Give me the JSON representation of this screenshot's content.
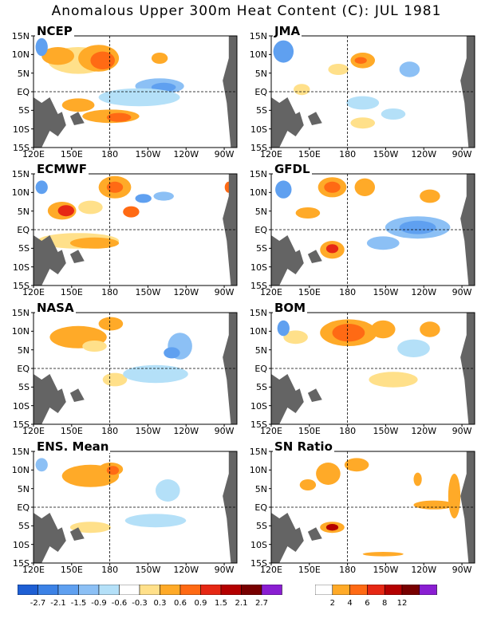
{
  "title": "Anomalous Upper 300m Heat Content (C): JUL 1981",
  "lat_labels": [
    "15N",
    "10N",
    "5N",
    "EQ",
    "5S",
    "10S",
    "15S"
  ],
  "lon_labels": [
    "120E",
    "150E",
    "180",
    "150W",
    "120W",
    "90W"
  ],
  "panels": [
    {
      "name": "NCEP"
    },
    {
      "name": "JMA"
    },
    {
      "name": "ECMWF"
    },
    {
      "name": "GFDL"
    },
    {
      "name": "NASA"
    },
    {
      "name": "BOM"
    },
    {
      "name": "ENS. Mean"
    },
    {
      "name": "SN Ratio"
    }
  ],
  "anomaly_colorbar": {
    "colors": [
      "#1e5fd4",
      "#3c82e6",
      "#5fa0f0",
      "#8cc0f5",
      "#b4e0f8",
      "#ffffff",
      "#ffe08a",
      "#ffaa28",
      "#ff6a14",
      "#e62814",
      "#b40000",
      "#780000",
      "#8a1ed2"
    ],
    "ticks": [
      "-2.7",
      "-2.1",
      "-1.5",
      "-0.9",
      "-0.6",
      "-0.3",
      "0.3",
      "0.6",
      "0.9",
      "1.5",
      "2.1",
      "2.7"
    ]
  },
  "sn_colorbar": {
    "colors": [
      "#ffffff",
      "#ffaa28",
      "#ff6a14",
      "#e62814",
      "#b40000",
      "#780000",
      "#8a1ed2"
    ],
    "ticks": [
      "2",
      "4",
      "6",
      "8",
      "12"
    ]
  }
}
